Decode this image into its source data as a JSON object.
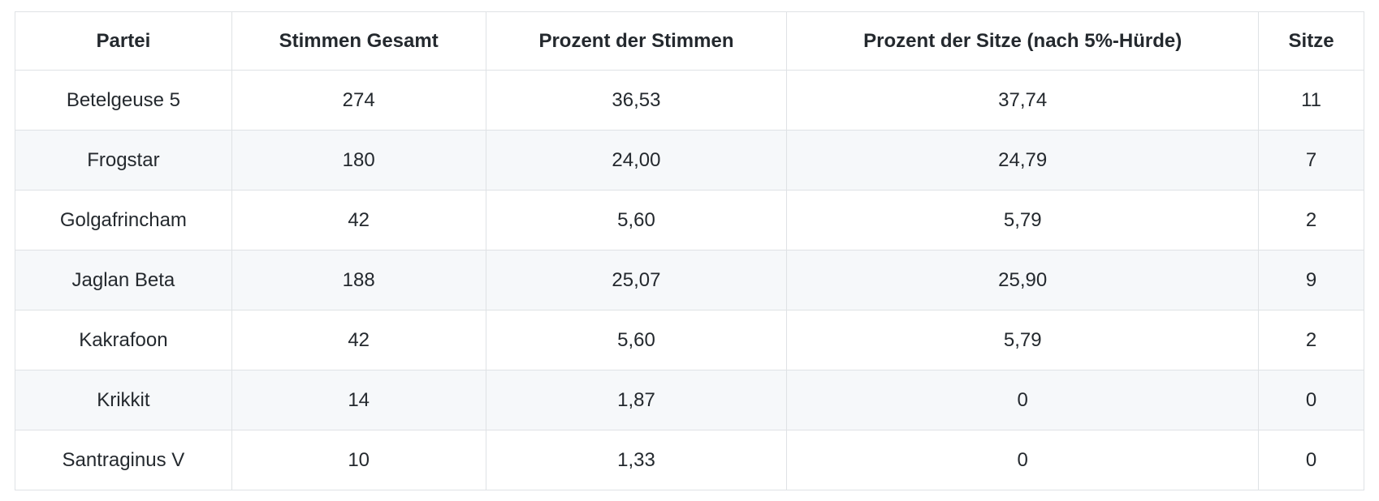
{
  "table": {
    "columns": [
      {
        "id": "partei",
        "label": "Partei"
      },
      {
        "id": "stimmen-gesamt",
        "label": "Stimmen Gesamt"
      },
      {
        "id": "prozent-stimmen",
        "label": "Prozent der Stimmen"
      },
      {
        "id": "prozent-sitze",
        "label": "Prozent der Sitze (nach 5%-Hürde)"
      },
      {
        "id": "sitze",
        "label": "Sitze"
      }
    ],
    "rows": [
      [
        "Betelgeuse 5",
        "274",
        "36,53",
        "37,74",
        "11"
      ],
      [
        "Frogstar",
        "180",
        "24,00",
        "24,79",
        "7"
      ],
      [
        "Golgafrincham",
        "42",
        "5,60",
        "5,79",
        "2"
      ],
      [
        "Jaglan Beta",
        "188",
        "25,07",
        "25,90",
        "9"
      ],
      [
        "Kakrafoon",
        "42",
        "5,60",
        "5,79",
        "2"
      ],
      [
        "Krikkit",
        "14",
        "1,87",
        "0",
        "0"
      ],
      [
        "Santraginus V",
        "10",
        "1,33",
        "0",
        "0"
      ]
    ],
    "colors": {
      "text": "#24292e",
      "border": "#dfe2e5",
      "stripe": "#f6f8fa",
      "background": "#ffffff"
    }
  }
}
